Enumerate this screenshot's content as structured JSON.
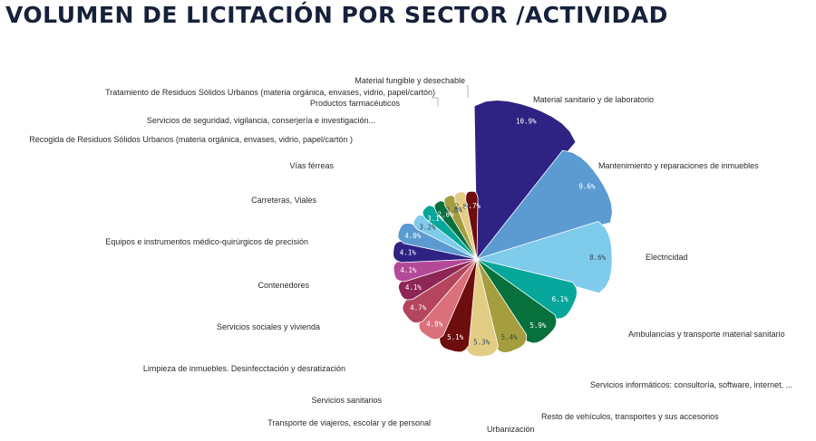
{
  "title": "VOLUMEN DE LICITACIÓN POR SECTOR /ACTIVIDAD",
  "chart_data": {
    "type": "pie",
    "variant": "polar-area",
    "title": "VOLUMEN DE LICITACIÓN POR SECTOR /ACTIVIDAD",
    "unit": "%",
    "slices": [
      {
        "label": "Material sanitario y de laboratorio",
        "value": 10.9,
        "value_label": "10.9%",
        "color": "#2e2383"
      },
      {
        "label": "Mantenimiento y reparaciones de inmuebles",
        "value": 9.6,
        "value_label": "9.6%",
        "color": "#5b9bd1"
      },
      {
        "label": "Electricidad",
        "value": 8.6,
        "value_label": "8.6%",
        "color": "#7fcbec"
      },
      {
        "label": "Ambulancias y transporte material sanitario",
        "value": 6.1,
        "value_label": "6.1%",
        "color": "#06a79a"
      },
      {
        "label": "Servicios informáticos: consultoría, software, internet, ...",
        "value": 5.9,
        "value_label": "5.9%",
        "color": "#07713d"
      },
      {
        "label": "Resto de vehículos, transportes y sus  accesorios",
        "value": 5.4,
        "value_label": "5.4%",
        "color": "#a59e3e"
      },
      {
        "label": "Urbanización",
        "value": 5.3,
        "value_label": "5.3%",
        "color": "#e2cd85"
      },
      {
        "label": "Transporte de viajeros,  escolar y de personal",
        "value": 5.1,
        "value_label": "5.1%",
        "color": "#6e0d0d"
      },
      {
        "label": "Servicios sanitarios",
        "value": 4.8,
        "value_label": "4.8%",
        "color": "#d9707a"
      },
      {
        "label": "Limpieza de inmuebles. Desinfecctación y desratización",
        "value": 4.7,
        "value_label": "4.7%",
        "color": "#b3455e"
      },
      {
        "label": "Servicios sociales y vivienda",
        "value": 4.1,
        "value_label": "4.1%",
        "color": "#8d2655"
      },
      {
        "label": "Contenedores",
        "value": 4.1,
        "value_label": "4.1%",
        "color": "#b44998"
      },
      {
        "label": "Equipos e instrumentos médico-quirúrgicos de precisión",
        "value": 4.1,
        "value_label": "4.1%",
        "color": "#2e2383"
      },
      {
        "label": "Carreteras, Viales",
        "value": 4.0,
        "value_label": "4.0%",
        "color": "#5b9bd1"
      },
      {
        "label": "Vías férreas",
        "value": 3.2,
        "value_label": "3.2%",
        "color": "#7fcbec"
      },
      {
        "label": "Recogida de  Residuos Sólidos Urbanos (materia orgánica, envases, vidrio, papel/cartón )",
        "value": 3.1,
        "value_label": "3.1%",
        "color": "#06a79a"
      },
      {
        "label": "Servicios de seguridad,  vigilancia,  conserjería e investigación...",
        "value": 2.8,
        "value_label": "2.8%",
        "color": "#07713d"
      },
      {
        "label": "Productos farmacéuticos",
        "value": 2.8,
        "value_label": "2.8%",
        "color": "#a59e3e"
      },
      {
        "label": "Tratamiento de Residuos Sólidos Urbanos (materia orgánica, envases, vidrio, papel/cartón)",
        "value": 2.8,
        "value_label": "2.8%",
        "color": "#e2cd85"
      },
      {
        "label": "Material fungible y desechable",
        "value": 2.7,
        "value_label": "2.7%",
        "color": "#6e0d0d"
      }
    ]
  }
}
